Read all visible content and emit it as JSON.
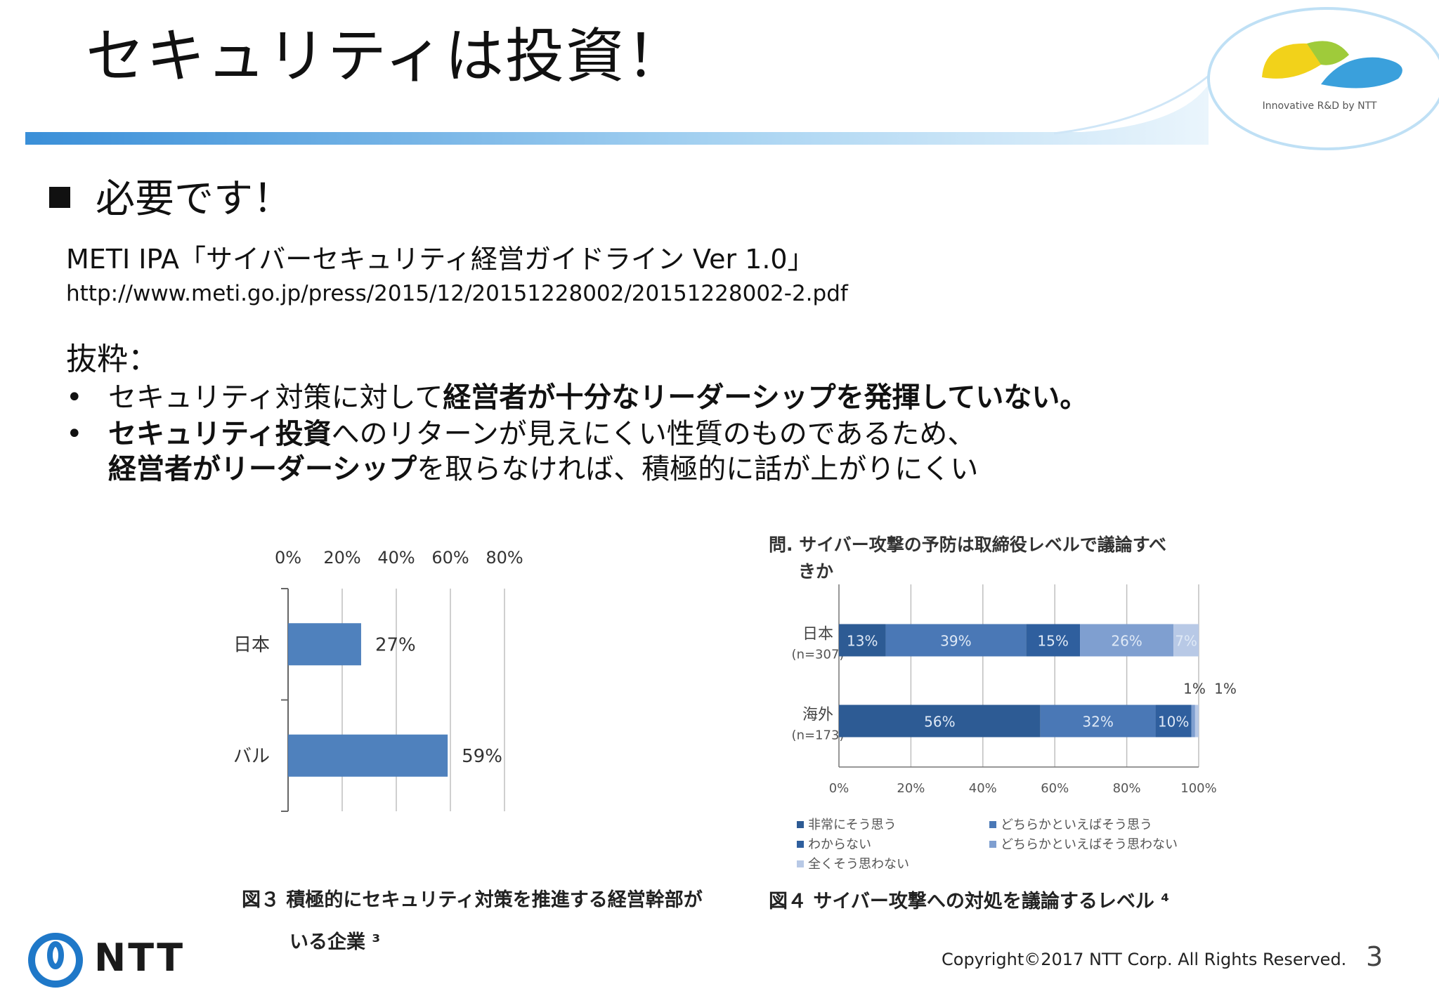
{
  "slide": {
    "title": "セキュリティは投資！",
    "bullet_heading": "必要です！",
    "source_title": "METI IPA「サイバーセキュリティ経営ガイドライン Ver 1.0」",
    "source_url": "http://www.meti.go.jp/press/2015/12/20151228002/20151228002-2.pdf",
    "excerpt_label": "抜粋：",
    "bullets": [
      {
        "dot": "•",
        "normal_1": "セキュリティ対策に対して",
        "bold_1": "経営者が十分なリーダーシップを発揮していない。"
      },
      {
        "dot": "•",
        "bold_1": "セキュリティ投資",
        "normal_1": "へのリターンが見えにくい性質のものであるため、",
        "bold_2": "経営者がリーダーシップ",
        "normal_2": "を取らなければ、積極的に話が上がりにくい"
      }
    ]
  },
  "logo": {
    "text": "Innovative R&D by NTT",
    "colors": {
      "yellow": "#f2d21a",
      "green": "#9fcb3a",
      "blue": "#3aa0dc"
    }
  },
  "footer": {
    "copyright": "Copyright©2017 NTT Corp. All Rights Reserved.",
    "page_number": "3",
    "company": "NTT"
  },
  "colors": {
    "accent_blue": "#3a8fd8",
    "bar_blue": "#4f81bd",
    "grid": "#bfbfbf"
  },
  "chart_data": [
    {
      "type": "bar",
      "orientation": "horizontal",
      "title": "",
      "caption_lines": [
        "図３ 積極的にセキュリティ対策を推進する経営幹部が",
        "いる企業 ³"
      ],
      "categories": [
        "日本",
        "グローバル"
      ],
      "values": [
        27,
        59
      ],
      "value_labels": [
        "27%",
        "59%"
      ],
      "x_ticks": [
        "0%",
        "20%",
        "40%",
        "60%",
        "80%"
      ],
      "xlim": [
        0,
        80
      ],
      "grid": true,
      "color": "#4f81bd"
    },
    {
      "type": "bar",
      "orientation": "horizontal",
      "stacked": true,
      "title_lines": [
        "問. サイバー攻撃の予防は取締役レベルで議論すべ",
        "きか"
      ],
      "caption": "図４ サイバー攻撃への対処を議論するレベル ⁴",
      "categories": [
        {
          "label": "日本",
          "sub": "(n=307)"
        },
        {
          "label": "海外",
          "sub": "(n=173)"
        }
      ],
      "series": [
        {
          "name": "非常にそう思う",
          "values": [
            13,
            56
          ],
          "labels": [
            "13%",
            "56%"
          ],
          "color": "#2d5b94"
        },
        {
          "name": "どちらかといえばそう思う",
          "values": [
            39,
            32
          ],
          "labels": [
            "39%",
            "32%"
          ],
          "color": "#4a78b6"
        },
        {
          "name": "わからない",
          "values": [
            15,
            10
          ],
          "labels": [
            "15%",
            "10%"
          ],
          "color": "#2f5f9e"
        },
        {
          "name": "どちらかといえばそう思わない",
          "values": [
            26,
            1
          ],
          "labels": [
            "26%",
            "1%"
          ],
          "color": "#7f9fd0"
        },
        {
          "name": "全くそう思わない",
          "values": [
            7,
            1
          ],
          "labels": [
            "7%",
            "1%"
          ],
          "color": "#b8c9e6"
        }
      ],
      "x_ticks": [
        "0%",
        "20%",
        "40%",
        "60%",
        "80%",
        "100%"
      ],
      "xlim": [
        0,
        100
      ],
      "grid": true,
      "legend_position": "bottom"
    }
  ]
}
